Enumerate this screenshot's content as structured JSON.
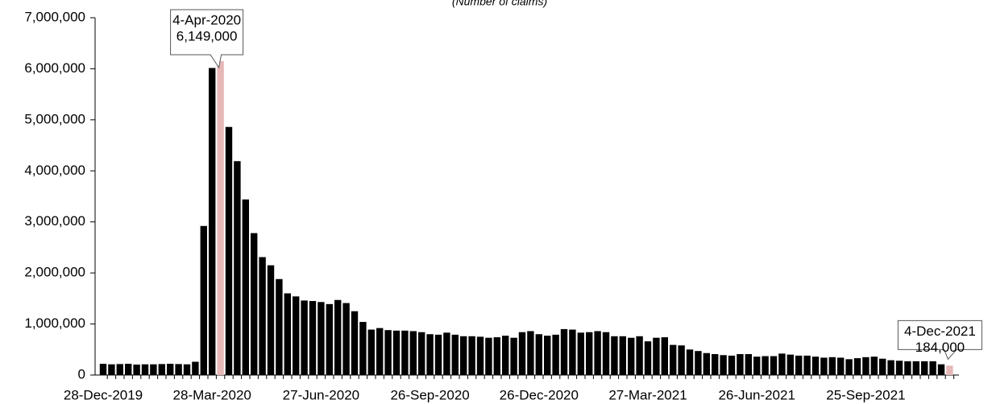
{
  "chart_data": {
    "type": "bar",
    "subtitle": "(Number of claims)",
    "categories": [
      "28-Dec-2019",
      null,
      null,
      null,
      null,
      null,
      null,
      null,
      null,
      null,
      null,
      null,
      null,
      "28-Mar-2020",
      null,
      null,
      null,
      null,
      null,
      null,
      null,
      null,
      null,
      null,
      null,
      null,
      "27-Jun-2020",
      null,
      null,
      null,
      null,
      null,
      null,
      null,
      null,
      null,
      null,
      null,
      null,
      "26-Sep-2020",
      null,
      null,
      null,
      null,
      null,
      null,
      null,
      null,
      null,
      null,
      null,
      null,
      "26-Dec-2020",
      null,
      null,
      null,
      null,
      null,
      null,
      null,
      null,
      null,
      null,
      null,
      null,
      "27-Mar-2021",
      null,
      null,
      null,
      null,
      null,
      null,
      null,
      null,
      null,
      null,
      null,
      null,
      "26-Jun-2021",
      null,
      null,
      null,
      null,
      null,
      null,
      null,
      null,
      null,
      null,
      null,
      null,
      "25-Sep-2021",
      null,
      null,
      null,
      null,
      null,
      null,
      null,
      null,
      null,
      null
    ],
    "values": [
      220000,
      210000,
      215000,
      220000,
      205000,
      210000,
      210000,
      215000,
      220000,
      215000,
      210000,
      260000,
      2920000,
      6015000,
      6149000,
      4860000,
      4190000,
      3440000,
      2780000,
      2310000,
      2150000,
      1880000,
      1600000,
      1540000,
      1460000,
      1450000,
      1430000,
      1390000,
      1470000,
      1410000,
      1250000,
      1040000,
      890000,
      920000,
      880000,
      870000,
      870000,
      860000,
      840000,
      800000,
      790000,
      830000,
      790000,
      760000,
      760000,
      750000,
      730000,
      740000,
      770000,
      730000,
      840000,
      860000,
      800000,
      770000,
      790000,
      900000,
      890000,
      830000,
      840000,
      860000,
      840000,
      760000,
      760000,
      730000,
      760000,
      660000,
      730000,
      740000,
      590000,
      580000,
      500000,
      470000,
      430000,
      410000,
      390000,
      380000,
      410000,
      410000,
      360000,
      370000,
      370000,
      420000,
      400000,
      380000,
      380000,
      360000,
      340000,
      350000,
      340000,
      310000,
      330000,
      350000,
      360000,
      320000,
      290000,
      280000,
      270000,
      270000,
      270000,
      270000,
      210000,
      184000
    ],
    "colors": [
      "#000000",
      "#000000",
      "#000000",
      "#000000",
      "#000000",
      "#000000",
      "#000000",
      "#000000",
      "#000000",
      "#000000",
      "#000000",
      "#000000",
      "#000000",
      "#000000",
      "#e6b8b7",
      "#000000",
      "#000000",
      "#000000",
      "#000000",
      "#000000",
      "#000000",
      "#000000",
      "#000000",
      "#000000",
      "#000000",
      "#000000",
      "#000000",
      "#000000",
      "#000000",
      "#000000",
      "#000000",
      "#000000",
      "#000000",
      "#000000",
      "#000000",
      "#000000",
      "#000000",
      "#000000",
      "#000000",
      "#000000",
      "#000000",
      "#000000",
      "#000000",
      "#000000",
      "#000000",
      "#000000",
      "#000000",
      "#000000",
      "#000000",
      "#000000",
      "#000000",
      "#000000",
      "#000000",
      "#000000",
      "#000000",
      "#000000",
      "#000000",
      "#000000",
      "#000000",
      "#000000",
      "#000000",
      "#000000",
      "#000000",
      "#000000",
      "#000000",
      "#000000",
      "#000000",
      "#000000",
      "#000000",
      "#000000",
      "#000000",
      "#000000",
      "#000000",
      "#000000",
      "#000000",
      "#000000",
      "#000000",
      "#000000",
      "#000000",
      "#000000",
      "#000000",
      "#000000",
      "#000000",
      "#000000",
      "#000000",
      "#000000",
      "#000000",
      "#000000",
      "#000000",
      "#000000",
      "#000000",
      "#000000",
      "#000000",
      "#000000",
      "#000000",
      "#000000",
      "#000000",
      "#000000",
      "#000000",
      "#000000",
      "#000000",
      "#e6b8b7"
    ],
    "annotations": [
      {
        "date": "4-Apr-2020",
        "label": "6,149,000"
      },
      {
        "date": "4-Dec-2021",
        "label": "184,000"
      }
    ],
    "ylim": [
      0,
      7000000
    ],
    "yticks": [
      0,
      {
        "value": 1000000,
        "label": "1,000,000"
      },
      {
        "value": 2000000,
        "label": "2,000,000"
      },
      {
        "value": 3000000,
        "label": "3,000,000"
      },
      {
        "value": 4000000,
        "label": "4,000,000"
      },
      {
        "value": 5000000,
        "label": "5,000,000"
      },
      {
        "value": 6000000,
        "label": "6,000,000"
      },
      {
        "value": 7000000,
        "label": "7,000,000"
      }
    ]
  }
}
